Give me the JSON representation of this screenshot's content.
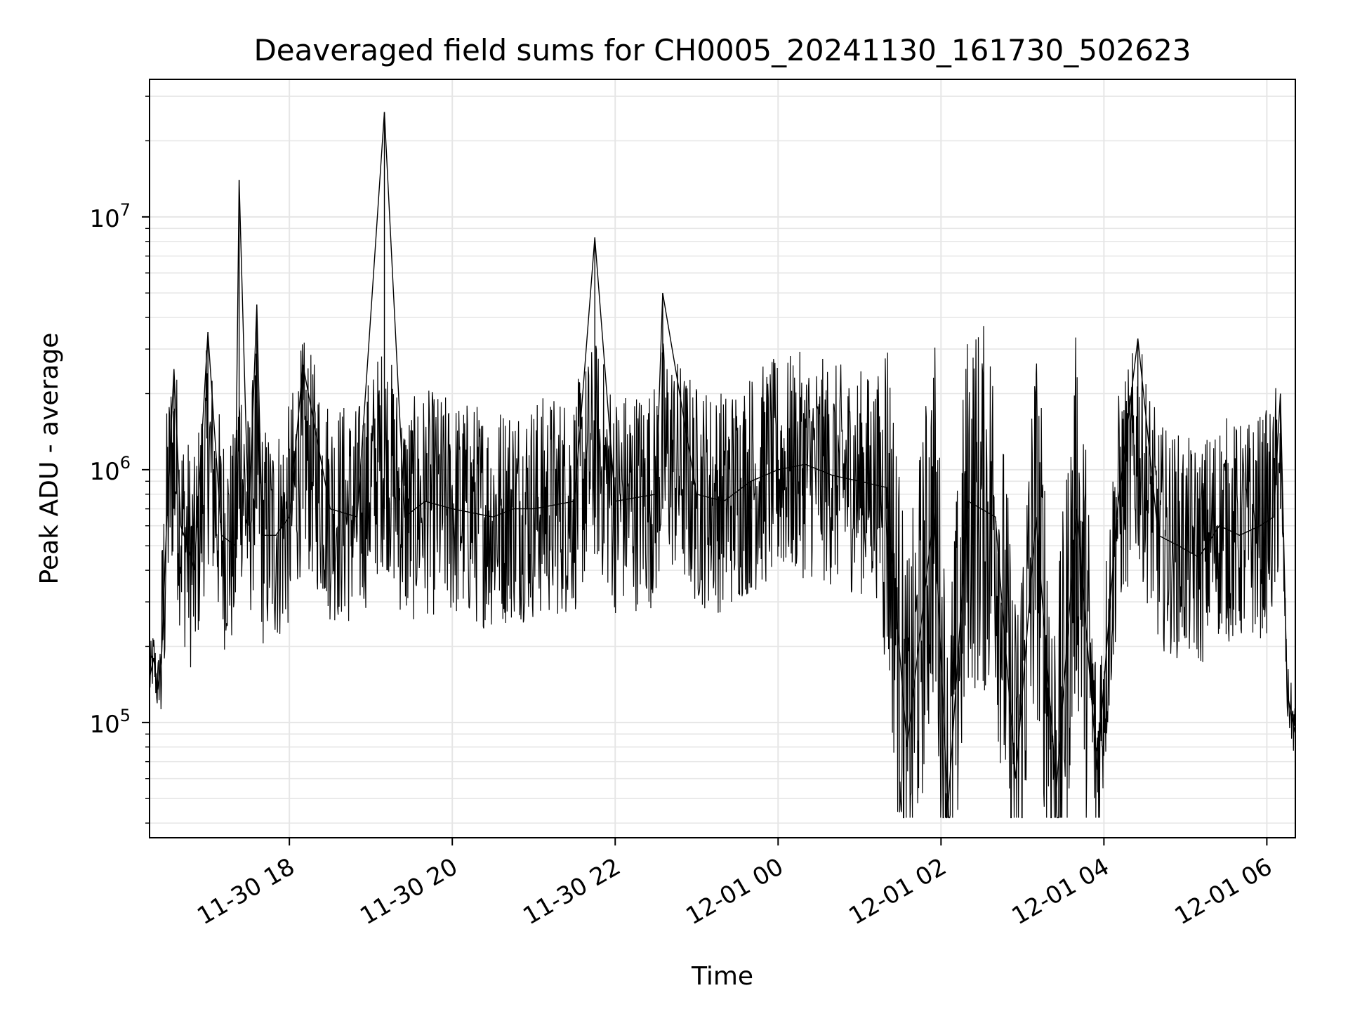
{
  "chart_data": {
    "type": "line",
    "title": "Deaveraged field sums for CH0005_20241130_161730_502623",
    "xlabel": "Time",
    "ylabel": "Peak ADU - average",
    "yscale": "log",
    "grid": true,
    "line_color": "#000000",
    "xlim": [
      "2024-11-30 16:17",
      "2024-12-01 06:21"
    ],
    "ylim": [
      35000,
      35000000
    ],
    "x_ticks": [
      "11-30 18",
      "11-30 20",
      "11-30 22",
      "12-01 00",
      "12-01 02",
      "12-01 04",
      "12-01 06"
    ],
    "y_ticks": [
      {
        "base": "10",
        "exp": "5",
        "value": 100000
      },
      {
        "base": "10",
        "exp": "6",
        "value": 1000000
      },
      {
        "base": "10",
        "exp": "7",
        "value": 10000000
      }
    ],
    "series": [
      {
        "x": [
          "2024-11-30 16:17",
          "2024-11-30 16:20",
          "2024-11-30 16:23",
          "2024-11-30 16:26",
          "2024-11-30 16:30",
          "2024-11-30 16:35",
          "2024-11-30 16:40",
          "2024-11-30 16:45",
          "2024-11-30 16:50",
          "2024-11-30 17:00",
          "2024-11-30 17:10",
          "2024-11-30 17:20",
          "2024-11-30 17:23",
          "2024-11-30 17:30",
          "2024-11-30 17:36",
          "2024-11-30 17:40",
          "2024-11-30 17:50",
          "2024-11-30 18:00",
          "2024-11-30 18:10",
          "2024-11-30 18:30",
          "2024-11-30 18:50",
          "2024-11-30 19:10",
          "2024-11-30 19:25",
          "2024-11-30 19:40",
          "2024-11-30 20:00",
          "2024-11-30 20:30",
          "2024-11-30 20:45",
          "2024-11-30 21:00",
          "2024-11-30 21:30",
          "2024-11-30 21:45",
          "2024-11-30 22:00",
          "2024-11-30 22:30",
          "2024-11-30 22:35",
          "2024-11-30 23:00",
          "2024-11-30 23:20",
          "2024-11-30 23:40",
          "2024-12-01 00:00",
          "2024-12-01 00:20",
          "2024-12-01 00:40",
          "2024-12-01 01:00",
          "2024-12-01 01:20",
          "2024-12-01 01:35",
          "2024-12-01 01:55",
          "2024-12-01 02:05",
          "2024-12-01 02:20",
          "2024-12-01 02:40",
          "2024-12-01 02:55",
          "2024-12-01 03:10",
          "2024-12-01 03:25",
          "2024-12-01 03:40",
          "2024-12-01 03:55",
          "2024-12-01 04:10",
          "2024-12-01 04:25",
          "2024-12-01 04:40",
          "2024-12-01 04:55",
          "2024-12-01 05:10",
          "2024-12-01 05:25",
          "2024-12-01 05:40",
          "2024-12-01 05:55",
          "2024-12-01 06:05",
          "2024-12-01 06:10",
          "2024-12-01 06:15",
          "2024-12-01 06:21"
        ],
        "y": [
          150000,
          180000,
          135000,
          190000,
          700000,
          2500000,
          600000,
          500000,
          400000,
          3500000,
          550000,
          500000,
          14000000,
          600000,
          4500000,
          550000,
          550000,
          650000,
          2600000,
          700000,
          650000,
          26000000,
          650000,
          750000,
          700000,
          650000,
          700000,
          700000,
          750000,
          8300000,
          750000,
          800000,
          5000000,
          800000,
          750000,
          900000,
          1000000,
          1050000,
          950000,
          900000,
          850000,
          80000,
          700000,
          45000,
          750000,
          650000,
          60000,
          650000,
          55000,
          700000,
          65000,
          700000,
          3300000,
          550000,
          500000,
          450000,
          600000,
          550000,
          600000,
          650000,
          2000000,
          130000,
          90000
        ]
      }
    ]
  }
}
